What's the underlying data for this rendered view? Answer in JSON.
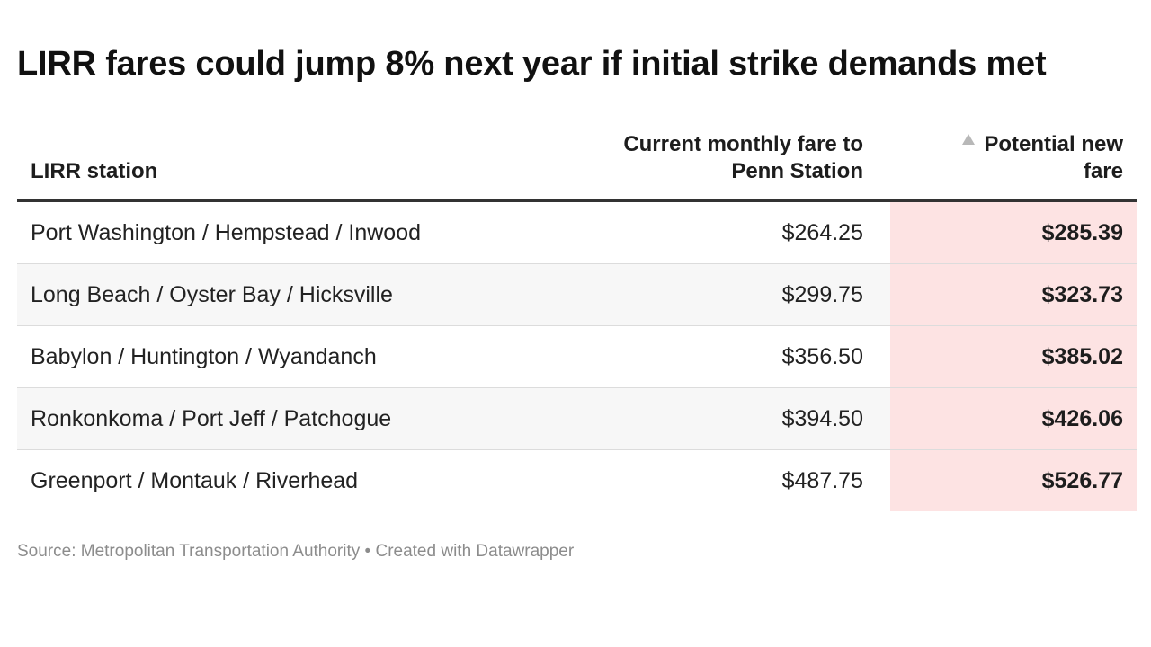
{
  "title": "LIRR fares could jump 8% next year if initial strike demands met",
  "headers": {
    "station": "LIRR station",
    "current_line1": "Current monthly fare to",
    "current_line2": "Penn Station",
    "new_line1": "Potential new",
    "new_line2": "fare",
    "new_sort_icon": "sort-ascending-triangle-icon"
  },
  "colors": {
    "highlight_column": "#fde3e3",
    "header_rule": "#333333",
    "alt_row": "#f7f7f7"
  },
  "source": "Source: Metropolitan Transportation Authority • Created with Datawrapper",
  "chart_data": {
    "type": "table",
    "title": "LIRR fares could jump 8% next year if initial strike demands met",
    "columns": [
      "LIRR station",
      "Current monthly fare to Penn Station",
      "Potential new fare"
    ],
    "rows": [
      {
        "station": "Port Washington / Hempstead / Inwood",
        "current": "$264.25",
        "new": "$285.39"
      },
      {
        "station": "Long Beach / Oyster Bay / Hicksville",
        "current": "$299.75",
        "new": "$323.73"
      },
      {
        "station": "Babylon / Huntington / Wyandanch",
        "current": "$356.50",
        "new": "$385.02"
      },
      {
        "station": "Ronkonkoma / Port Jeff / Patchogue",
        "current": "$394.50",
        "new": "$426.06"
      },
      {
        "station": "Greenport / Montauk / Riverhead",
        "current": "$487.75",
        "new": "$526.77"
      }
    ],
    "sorted_by": "Potential new fare",
    "sort_order": "ascending"
  }
}
